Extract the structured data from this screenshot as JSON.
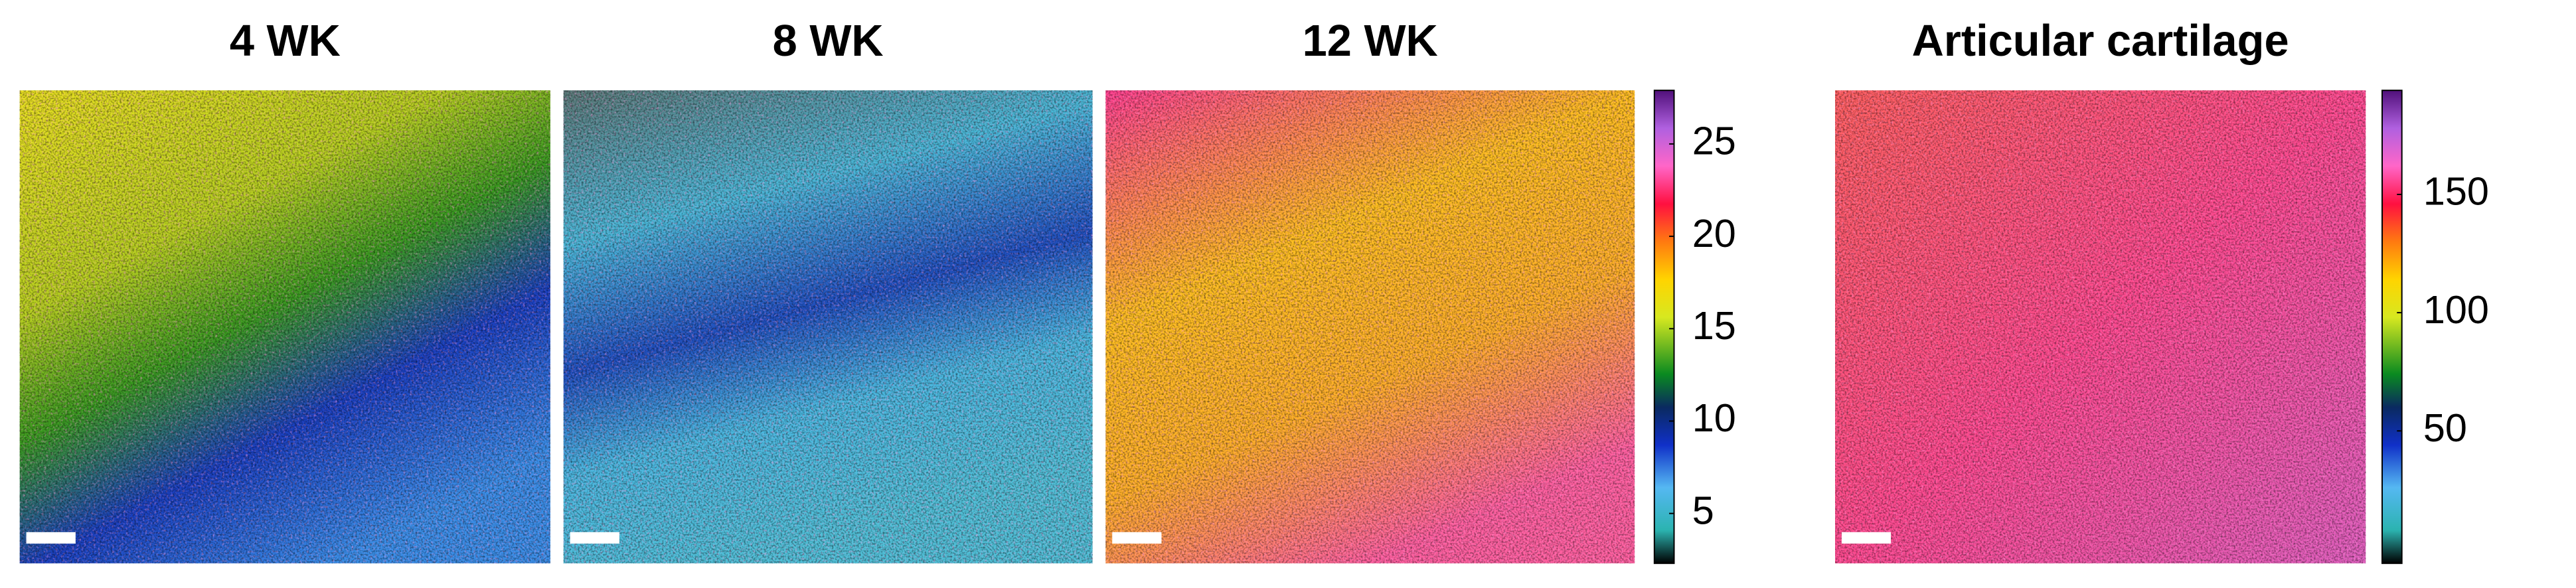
{
  "chart_data": [
    {
      "type": "heatmap",
      "title": "4 WK"
    },
    {
      "type": "heatmap",
      "title": "8 WK"
    },
    {
      "type": "heatmap",
      "title": "12 WK",
      "colorbar": true,
      "ylim": [
        2.3,
        27.9
      ],
      "yticks": [
        5,
        10,
        15,
        20,
        25
      ]
    },
    {
      "type": "heatmap",
      "title": "Articular cartilage",
      "colorbar": true,
      "ylim": [
        -6,
        194
      ],
      "yticks": [
        50,
        100,
        150
      ]
    }
  ]
}
